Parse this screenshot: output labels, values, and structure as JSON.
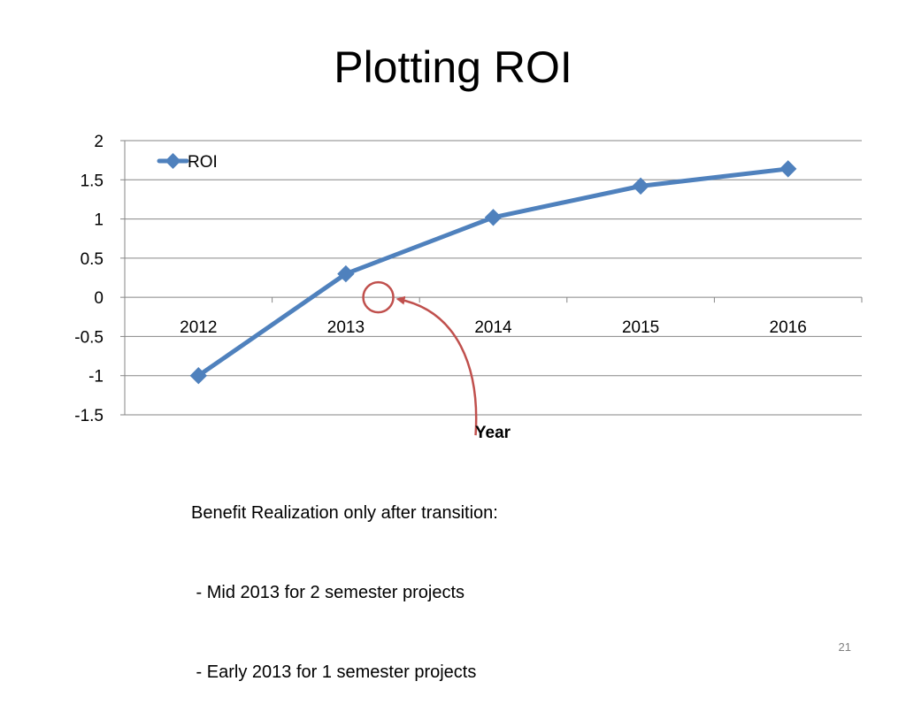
{
  "slide": {
    "title": "Plotting ROI",
    "caption_lines": [
      "Benefit Realization only after transition:",
      " - Mid 2013 for 2 semester projects",
      " - Early 2013 for 1 semester projects"
    ],
    "slide_number": "21"
  },
  "chart_data": {
    "type": "line",
    "title": "",
    "xlabel": "Year",
    "ylabel": "",
    "categories": [
      "2012",
      "2013",
      "2014",
      "2015",
      "2016"
    ],
    "series": [
      {
        "name": "ROI",
        "values": [
          -1.0,
          0.3,
          1.02,
          1.42,
          1.64
        ],
        "color": "#4F81BD"
      }
    ],
    "ylim": [
      -1.5,
      2
    ],
    "yticks": [
      2,
      1.5,
      1,
      0.5,
      0,
      -0.5,
      -1,
      -1.5
    ],
    "ytick_labels": [
      "2",
      "1.5",
      "1",
      "0.5",
      "0",
      "-0.5",
      "-1",
      "-1.5"
    ],
    "grid": true,
    "legend_position": "top-left",
    "annotation": {
      "type": "circle-with-arrow",
      "x_category_position": 1.72,
      "y_value": 0,
      "color": "#C0504D"
    }
  },
  "colors": {
    "series": "#4F81BD",
    "annotation": "#C0504D",
    "grid": "#868686"
  }
}
